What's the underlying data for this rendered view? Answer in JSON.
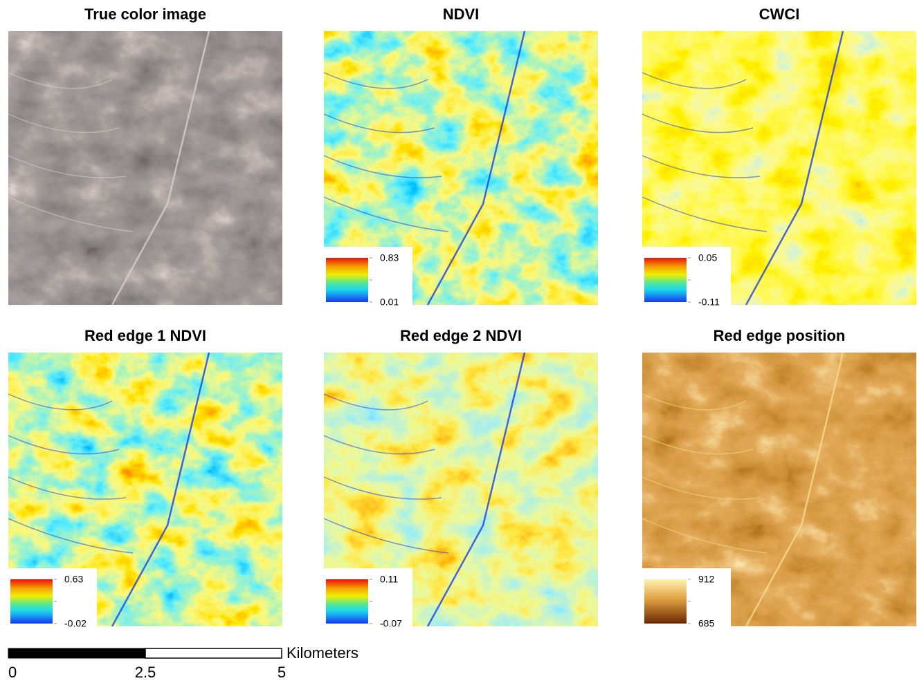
{
  "panels": [
    {
      "title": "True color image"
    },
    {
      "title": "NDVI",
      "legend": {
        "max": 0.83,
        "min": 0.01
      }
    },
    {
      "title": "CWCI",
      "legend": {
        "max": 0.05,
        "min": -0.11
      }
    },
    {
      "title": "Red edge 1 NDVI",
      "legend": {
        "max": 0.63,
        "min": -0.02
      }
    },
    {
      "title": "Red edge 2 NDVI",
      "legend": {
        "max": 0.11,
        "min": -0.07
      }
    },
    {
      "title": "Red edge position",
      "legend": {
        "max": 912,
        "min": 685
      }
    }
  ],
  "scale_bar": {
    "unit": "Kilometers",
    "ticks": [
      0,
      2.5,
      5
    ]
  }
}
